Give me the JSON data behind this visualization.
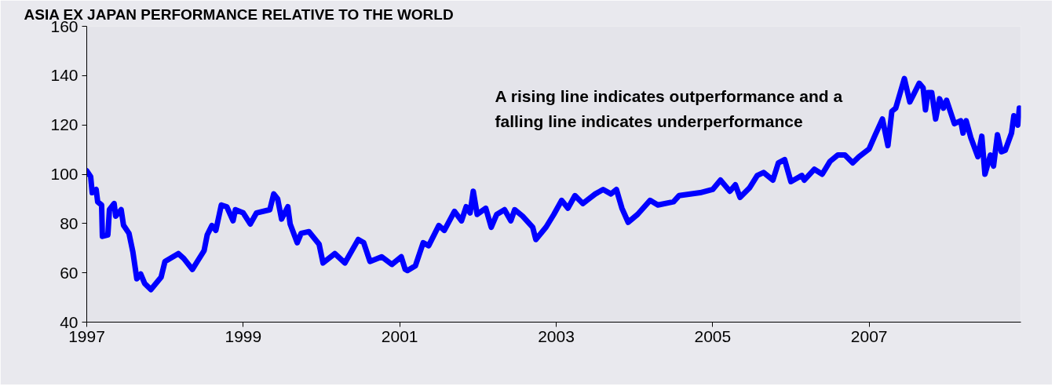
{
  "chart_data": {
    "type": "line",
    "title": "ASIA EX JAPAN PERFORMANCE RELATIVE TO THE WORLD",
    "annotations": [
      "A rising line indicates outperformance and a\nfalling line indicates underperformance"
    ],
    "xlim": [
      1997,
      2008.94
    ],
    "xticks": [
      1997,
      1999,
      2001,
      2003,
      2005,
      2007
    ],
    "ylim": [
      40,
      160
    ],
    "yticks": [
      40,
      60,
      80,
      100,
      120,
      140,
      160
    ],
    "line_style": "solid",
    "series": [
      {
        "color": "#0000ff",
        "x": [
          1997.0,
          1997.05,
          1997.07,
          1997.12,
          1997.14,
          1997.19,
          1997.2,
          1997.27,
          1997.29,
          1997.35,
          1997.37,
          1997.44,
          1997.47,
          1997.54,
          1997.59,
          1997.64,
          1997.69,
          1997.74,
          1997.82,
          1997.95,
          1998.0,
          1998.17,
          1998.24,
          1998.35,
          1998.5,
          1998.54,
          1998.6,
          1998.65,
          1998.72,
          1998.79,
          1998.87,
          1998.9,
          1999.0,
          1999.09,
          1999.17,
          1999.34,
          1999.39,
          1999.44,
          1999.49,
          1999.57,
          1999.6,
          1999.69,
          1999.74,
          1999.84,
          1999.97,
          2000.02,
          2000.17,
          2000.3,
          2000.47,
          2000.54,
          2000.62,
          2000.77,
          2000.9,
          2001.02,
          2001.07,
          2001.1,
          2001.2,
          2001.3,
          2001.37,
          2001.5,
          2001.57,
          2001.7,
          2001.79,
          2001.85,
          2001.9,
          2001.94,
          2001.99,
          2002.1,
          2002.17,
          2002.24,
          2002.34,
          2002.42,
          2002.47,
          2002.57,
          2002.7,
          2002.74,
          2002.87,
          2002.97,
          2003.07,
          2003.15,
          2003.24,
          2003.34,
          2003.5,
          2003.6,
          2003.7,
          2003.77,
          2003.84,
          2003.92,
          2004.04,
          2004.2,
          2004.3,
          2004.5,
          2004.57,
          2004.84,
          2005.0,
          2005.1,
          2005.22,
          2005.29,
          2005.35,
          2005.47,
          2005.57,
          2005.65,
          2005.77,
          2005.84,
          2005.92,
          2006.0,
          2006.14,
          2006.17,
          2006.3,
          2006.4,
          2006.5,
          2006.6,
          2006.69,
          2006.79,
          2006.87,
          2007.0,
          2007.07,
          2007.17,
          2007.24,
          2007.29,
          2007.34,
          2007.45,
          2007.52,
          2007.57,
          2007.64,
          2007.69,
          2007.72,
          2007.75,
          2007.8,
          2007.85,
          2007.9,
          2007.95,
          2007.99,
          2008.09,
          2008.17,
          2008.2,
          2008.24,
          2008.3,
          2008.39,
          2008.44,
          2008.48,
          2008.55,
          2008.59,
          2008.64,
          2008.69,
          2008.74,
          2008.82,
          2008.85,
          2008.9,
          2008.92
        ],
        "values": [
          101.4,
          99,
          92.5,
          93.8,
          88.8,
          87.5,
          74.8,
          75.4,
          85.6,
          88.1,
          83,
          85.6,
          79.3,
          76,
          68.4,
          57.6,
          59.5,
          55.7,
          53.2,
          58.2,
          64.6,
          67.8,
          65.8,
          61.4,
          69,
          75.4,
          79.2,
          77.2,
          87.5,
          86.8,
          81.1,
          85.6,
          84.3,
          79.8,
          84.3,
          85.6,
          92,
          90,
          81.8,
          86.8,
          79.8,
          72.2,
          76,
          76.7,
          71.6,
          64,
          67.8,
          64,
          73.5,
          72.2,
          64.6,
          66.5,
          63.4,
          66.5,
          61.4,
          60.9,
          62.8,
          72.2,
          71,
          79.2,
          77.2,
          84.9,
          81.1,
          86.8,
          84.3,
          93.1,
          83.7,
          86.2,
          78.5,
          83.7,
          85.6,
          81.1,
          85.6,
          83,
          78.5,
          73.5,
          78.5,
          83.7,
          89.4,
          86.2,
          91.3,
          88.1,
          92,
          93.8,
          92,
          93.8,
          86.2,
          80.5,
          83.7,
          89.4,
          87.5,
          88.8,
          91.3,
          92.5,
          93.8,
          97.6,
          93.1,
          95.7,
          90.6,
          94.4,
          99.5,
          100.7,
          97.6,
          104.6,
          105.9,
          97,
          99.5,
          97.6,
          102,
          100,
          105.2,
          107.8,
          107.8,
          104.6,
          107.1,
          110.3,
          115.4,
          122.4,
          111.6,
          125.5,
          126.8,
          138.8,
          129.3,
          132.4,
          136.9,
          135,
          126.1,
          133.1,
          133.1,
          122.4,
          130.6,
          126.8,
          130,
          120.5,
          121.7,
          116.7,
          121.7,
          114.8,
          107.1,
          115.4,
          100,
          107.8,
          103.3,
          116,
          109.1,
          109.7,
          116.7,
          123.7,
          119.9,
          126.8
        ]
      }
    ]
  }
}
